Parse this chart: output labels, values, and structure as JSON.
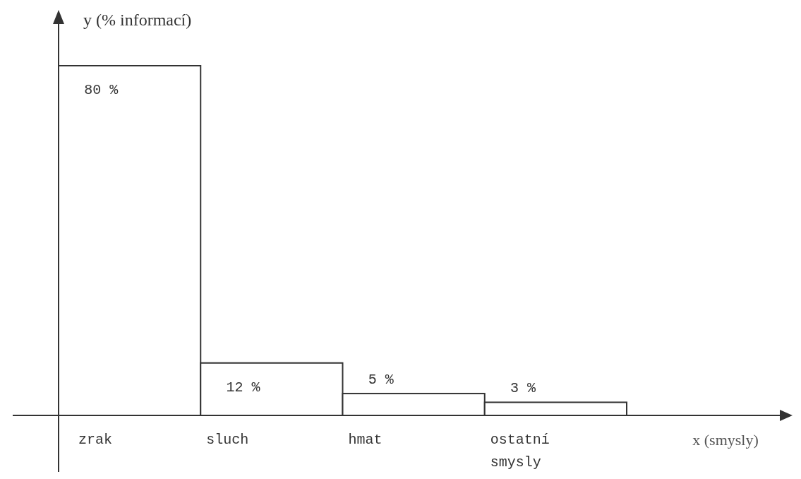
{
  "chart_data": {
    "type": "bar",
    "annotations": [
      "x (smysly)"
    ],
    "ylabel": "y (% informací)",
    "categories": [
      "zrak",
      "sluch",
      "hmat",
      "ostatní smysly"
    ],
    "values": [
      80,
      12,
      5,
      3
    ],
    "value_labels": [
      "80 %",
      "12 %",
      "5 %",
      "3 %"
    ],
    "color": "#ffffff"
  }
}
